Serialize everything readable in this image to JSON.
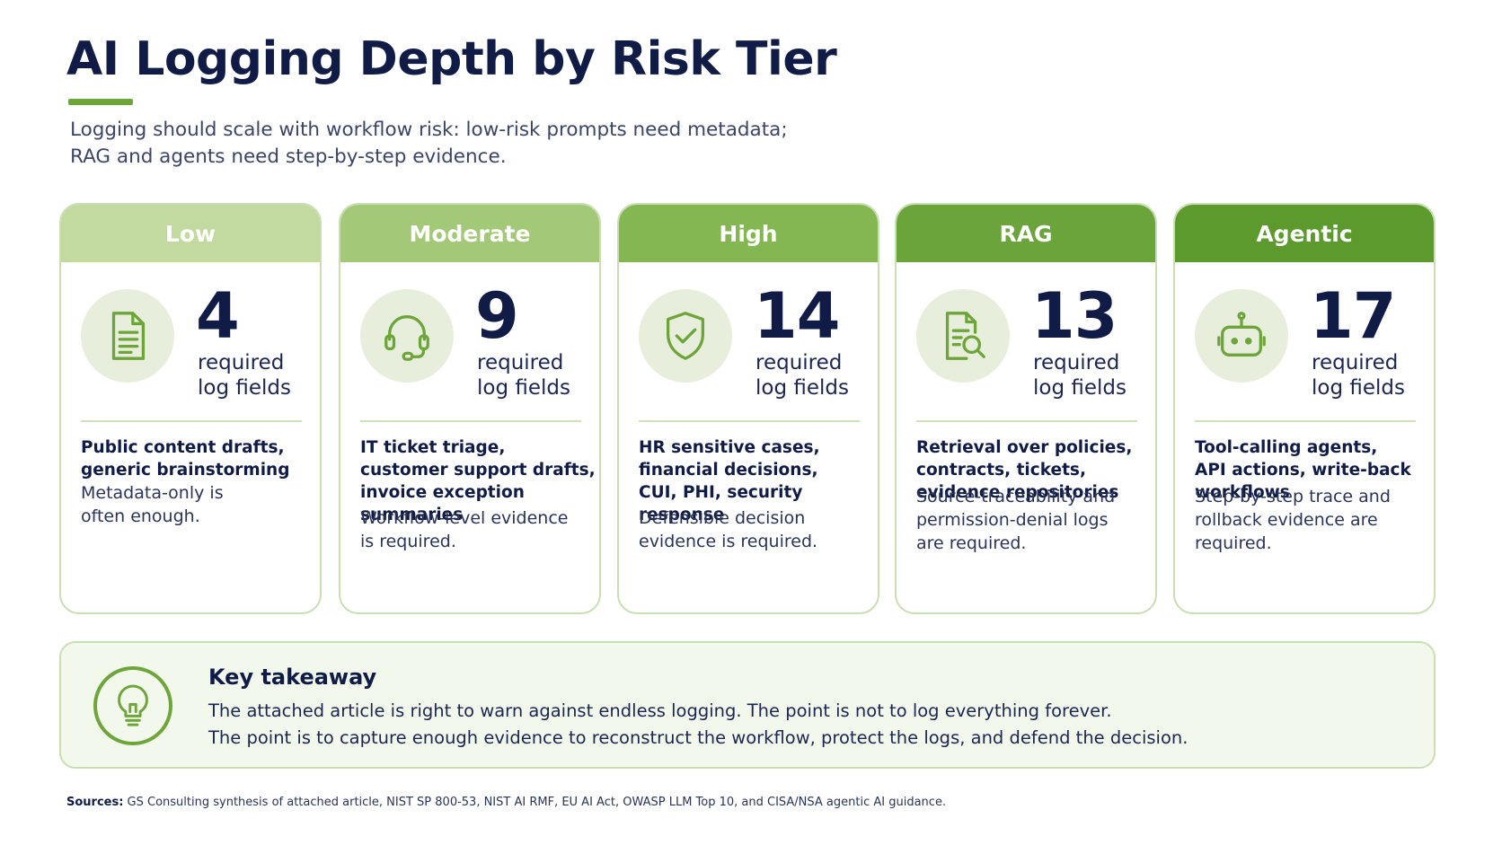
{
  "title": "AI Logging Depth by Risk Tier",
  "subtitle_line1": "Logging should scale with workflow risk: low-risk prompts need metadata;",
  "subtitle_line2": "RAG and agents need step-by-step evidence.",
  "colors": {
    "accent": "#6da53b",
    "navy": "#101c45",
    "icon_bg": "#e7efdc",
    "card_border": "#c9deb3"
  },
  "tiers": [
    {
      "name": "Low",
      "header_color": "#c2d99f",
      "icon": "document-icon",
      "count": "4",
      "count_label_1": "required",
      "count_label_2": "log fields",
      "uses": [
        "Public content drafts,",
        "generic brainstorming"
      ],
      "note": [
        "Metadata-only is",
        "often enough."
      ]
    },
    {
      "name": "Moderate",
      "header_color": "#a3c878",
      "icon": "headset-icon",
      "count": "9",
      "count_label_1": "required",
      "count_label_2": "log fields",
      "uses": [
        "IT ticket triage,",
        "customer support drafts,",
        "invoice exception",
        "summaries"
      ],
      "note": [
        "Workflow-level evidence",
        "is required."
      ]
    },
    {
      "name": "High",
      "header_color": "#84b651",
      "icon": "shield-check-icon",
      "count": "14",
      "count_label_1": "required",
      "count_label_2": "log fields",
      "uses": [
        "HR sensitive cases,",
        "financial decisions,",
        "CUI, PHI, security",
        "response"
      ],
      "note": [
        "Defensible decision",
        "evidence is required."
      ]
    },
    {
      "name": "RAG",
      "header_color": "#6aa43a",
      "icon": "document-search-icon",
      "count": "13",
      "count_label_1": "required",
      "count_label_2": "log fields",
      "uses": [
        "Retrieval over policies,",
        "contracts, tickets,",
        "evidence repositories"
      ],
      "note": [
        "Source-traceability and",
        "permission-denial logs",
        "are required."
      ]
    },
    {
      "name": "Agentic",
      "header_color": "#5c9a2e",
      "icon": "robot-icon",
      "count": "17",
      "count_label_1": "required",
      "count_label_2": "log fields",
      "uses": [
        "Tool-calling agents,",
        "API actions, write-back",
        "workflows"
      ],
      "note": [
        "Step-by-step trace and",
        "rollback evidence are",
        "required."
      ]
    }
  ],
  "takeaway": {
    "icon": "lightbulb-icon",
    "title": "Key takeaway",
    "line1": "The attached article is right to warn against endless logging. The point is not to log everything forever.",
    "line2": "The point is to capture enough evidence to reconstruct the workflow, protect the logs, and defend the decision."
  },
  "sources": {
    "label": "Sources:",
    "text": " GS Consulting synthesis of attached article, NIST SP 800-53, NIST AI RMF, EU AI Act, OWASP LLM Top 10, and CISA/NSA agentic AI guidance."
  }
}
